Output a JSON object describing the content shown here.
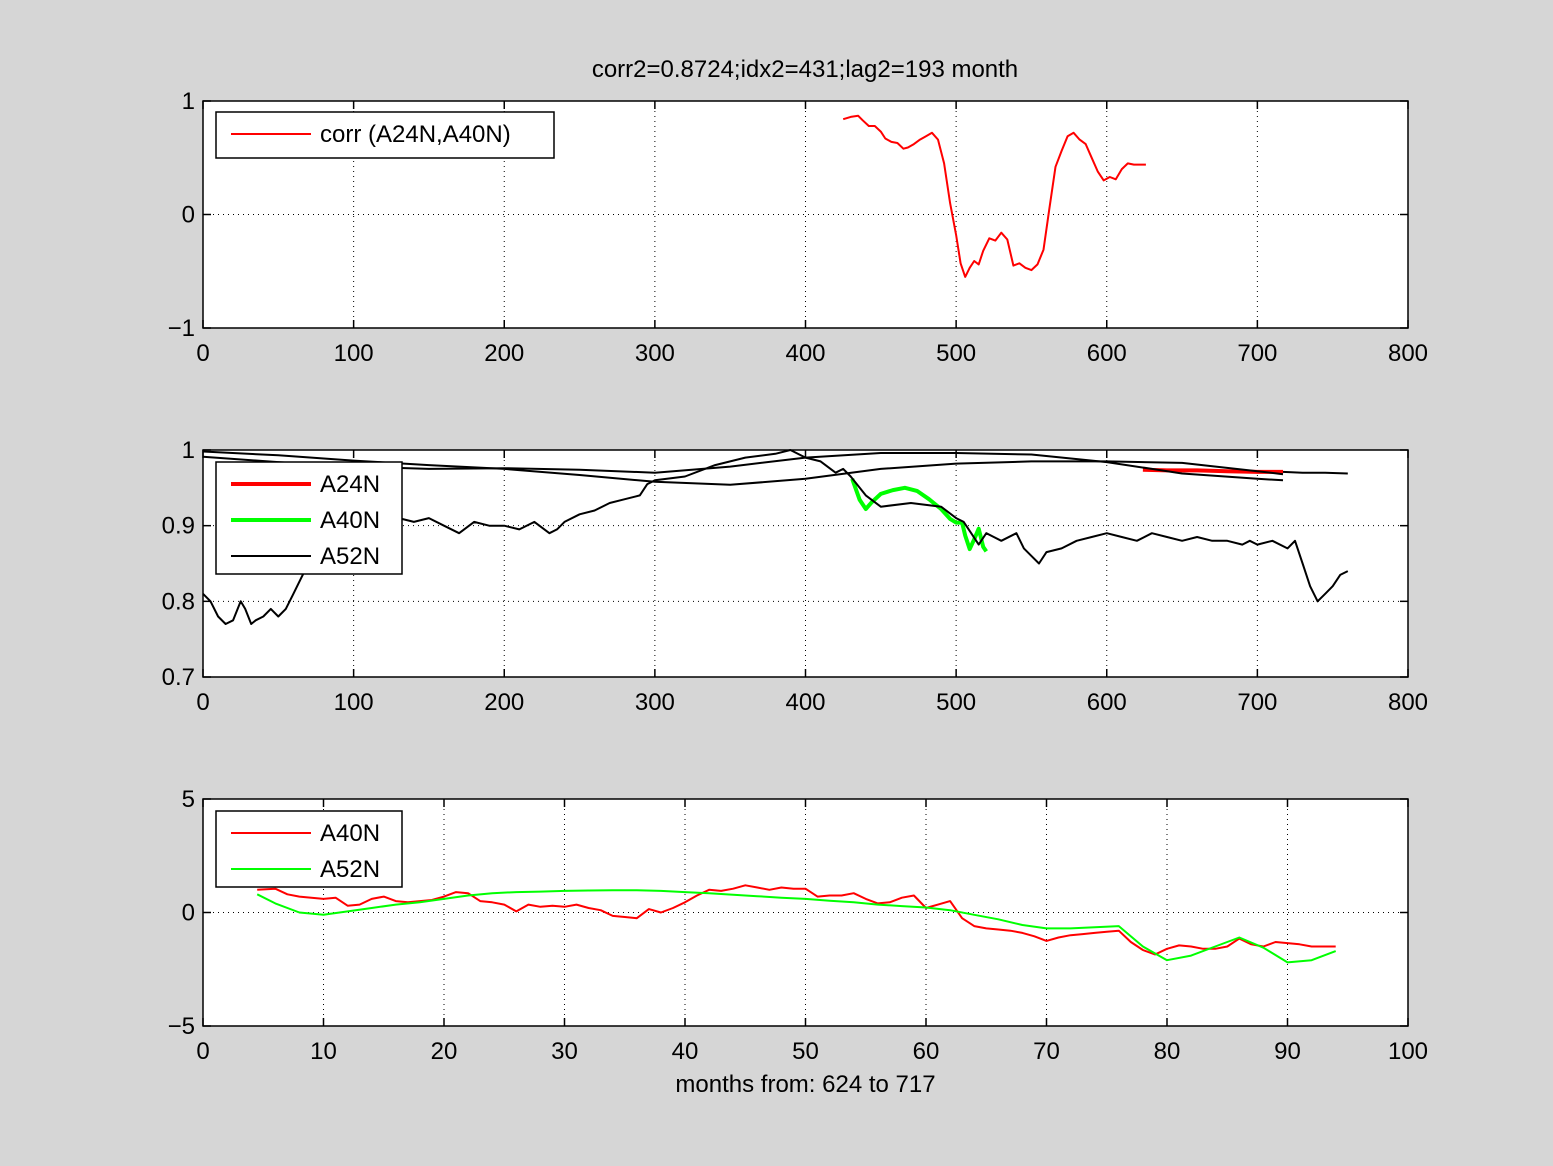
{
  "figure": {
    "background": "#d6d6d6",
    "title": "corr2=0.8724;idx2=431;lag2=193 month",
    "colors": {
      "red": "#ff0000",
      "green": "#00ff00",
      "black": "#000000"
    }
  },
  "chart_data": [
    {
      "type": "line",
      "title": "corr2=0.8724;idx2=431;lag2=193 month",
      "xlabel": "",
      "ylabel": "",
      "xlim": [
        0,
        800
      ],
      "ylim": [
        -1,
        1
      ],
      "xticks": [
        0,
        100,
        200,
        300,
        400,
        500,
        600,
        700,
        800
      ],
      "yticks": [
        -1,
        0,
        1
      ],
      "grid": true,
      "legend_position": "top-left",
      "series": [
        {
          "name": "corr (A24N,A40N)",
          "color": "#ff0000",
          "width": "thin",
          "x": [
            425,
            430,
            435,
            438,
            442,
            446,
            450,
            453,
            457,
            461,
            465,
            468,
            472,
            476,
            480,
            484,
            488,
            492,
            496,
            500,
            503,
            506,
            509,
            512,
            515,
            518,
            522,
            526,
            530,
            534,
            538,
            542,
            546,
            550,
            554,
            558,
            562,
            566,
            570,
            574,
            578,
            582,
            586,
            590,
            594,
            598,
            602,
            606,
            610,
            614,
            618,
            622,
            626
          ],
          "y": [
            0.84,
            0.86,
            0.87,
            0.83,
            0.78,
            0.78,
            0.73,
            0.67,
            0.64,
            0.63,
            0.58,
            0.59,
            0.62,
            0.66,
            0.69,
            0.72,
            0.66,
            0.45,
            0.1,
            -0.18,
            -0.43,
            -0.55,
            -0.47,
            -0.41,
            -0.44,
            -0.32,
            -0.21,
            -0.23,
            -0.16,
            -0.22,
            -0.45,
            -0.43,
            -0.47,
            -0.49,
            -0.44,
            -0.31,
            0.06,
            0.42,
            0.56,
            0.69,
            0.72,
            0.66,
            0.62,
            0.5,
            0.38,
            0.3,
            0.33,
            0.31,
            0.4,
            0.45,
            0.44,
            0.44,
            0.44
          ]
        }
      ]
    },
    {
      "type": "line",
      "title": "",
      "xlabel": "",
      "ylabel": "",
      "xlim": [
        0,
        800
      ],
      "ylim": [
        0.7,
        1
      ],
      "xticks": [
        0,
        100,
        200,
        300,
        400,
        500,
        600,
        700,
        800
      ],
      "yticks": [
        0.7,
        0.8,
        0.9,
        1
      ],
      "ytick_labels": [
        "0.7",
        "0.8",
        "0.9",
        "1"
      ],
      "grid": true,
      "legend_position": "top-left",
      "series": [
        {
          "name": "A24N",
          "color": "#ff0000",
          "width": "thick",
          "x": [
            624,
            640,
            660,
            680,
            700,
            717
          ],
          "y": [
            0.974,
            0.973,
            0.973,
            0.972,
            0.971,
            0.971
          ]
        },
        {
          "name": "A40N",
          "color": "#00ff00",
          "width": "thick",
          "x": [
            431,
            436,
            440,
            444,
            450,
            458,
            466,
            474,
            482,
            490,
            496,
            500,
            504,
            506,
            509,
            512,
            515,
            518,
            520
          ],
          "y": [
            0.962,
            0.934,
            0.922,
            0.931,
            0.942,
            0.947,
            0.95,
            0.946,
            0.935,
            0.922,
            0.909,
            0.904,
            0.904,
            0.887,
            0.869,
            0.882,
            0.896,
            0.872,
            0.866
          ]
        },
        {
          "name": "A52N",
          "color": "#000000",
          "width": "thin",
          "x": [
            0,
            5,
            10,
            15,
            20,
            25,
            28,
            32,
            35,
            40,
            45,
            50,
            55,
            60,
            65,
            70,
            75,
            80,
            85,
            90,
            95,
            100,
            110,
            120,
            130,
            140,
            150,
            160,
            170,
            180,
            190,
            200,
            210,
            220,
            230,
            235,
            240,
            250,
            260,
            270,
            280,
            290,
            295,
            300,
            320,
            340,
            360,
            380,
            390,
            400,
            410,
            420,
            425,
            430,
            440,
            450,
            470,
            490,
            500,
            505,
            510,
            515,
            520,
            525,
            530,
            540,
            545,
            550,
            555,
            560,
            570,
            580,
            590,
            600,
            610,
            620,
            630,
            640,
            650,
            660,
            670,
            680,
            690,
            695,
            700,
            710,
            720,
            725,
            730,
            735,
            740,
            745,
            750,
            755,
            760
          ],
          "y": [
            0.81,
            0.8,
            0.78,
            0.77,
            0.775,
            0.8,
            0.79,
            0.77,
            0.775,
            0.78,
            0.79,
            0.78,
            0.79,
            0.81,
            0.83,
            0.85,
            0.87,
            0.88,
            0.89,
            0.9,
            0.9,
            0.91,
            0.905,
            0.91,
            0.91,
            0.905,
            0.91,
            0.9,
            0.89,
            0.905,
            0.9,
            0.9,
            0.895,
            0.905,
            0.89,
            0.895,
            0.905,
            0.915,
            0.92,
            0.93,
            0.935,
            0.94,
            0.955,
            0.96,
            0.965,
            0.98,
            0.99,
            0.995,
            1.0,
            0.99,
            0.985,
            0.97,
            0.975,
            0.965,
            0.94,
            0.925,
            0.93,
            0.925,
            0.91,
            0.905,
            0.89,
            0.875,
            0.89,
            0.885,
            0.88,
            0.89,
            0.87,
            0.86,
            0.85,
            0.865,
            0.87,
            0.88,
            0.885,
            0.89,
            0.885,
            0.88,
            0.89,
            0.885,
            0.88,
            0.885,
            0.88,
            0.88,
            0.875,
            0.88,
            0.875,
            0.88,
            0.87,
            0.88,
            0.85,
            0.82,
            0.8,
            0.81,
            0.82,
            0.835,
            0.84
          ]
        },
        {
          "name": "",
          "color": "#000000",
          "width": "thin",
          "x": [
            0,
            50,
            100,
            150,
            200,
            250,
            300,
            350,
            400,
            450,
            500,
            550,
            600,
            650,
            700,
            717
          ],
          "y": [
            0.998,
            0.993,
            0.986,
            0.98,
            0.975,
            0.967,
            0.958,
            0.954,
            0.962,
            0.975,
            0.982,
            0.985,
            0.985,
            0.983,
            0.972,
            0.968
          ]
        },
        {
          "name": "",
          "color": "#000000",
          "width": "thin",
          "x": [
            0,
            50,
            100,
            150,
            200,
            250,
            300,
            350,
            400,
            450,
            500,
            550,
            600,
            630,
            650,
            700,
            717
          ],
          "y": [
            0.991,
            0.984,
            0.978,
            0.975,
            0.976,
            0.974,
            0.97,
            0.978,
            0.99,
            0.996,
            0.996,
            0.994,
            0.984,
            0.975,
            0.969,
            0.962,
            0.96
          ]
        },
        {
          "name": "",
          "color": "#000000",
          "width": "thin",
          "x": [
            717,
            730,
            745,
            760
          ],
          "y": [
            0.971,
            0.97,
            0.97,
            0.969
          ]
        }
      ]
    },
    {
      "type": "line",
      "title": "",
      "xlabel": "months from: 624 to 717",
      "ylabel": "",
      "xlim": [
        0,
        100
      ],
      "ylim": [
        -5,
        5
      ],
      "xticks": [
        0,
        10,
        20,
        30,
        40,
        50,
        60,
        70,
        80,
        90,
        100
      ],
      "yticks": [
        -5,
        0,
        5
      ],
      "grid": true,
      "legend_position": "top-left",
      "series": [
        {
          "name": "A40N",
          "color": "#ff0000",
          "width": "thin",
          "x": [
            4.5,
            6,
            7,
            8,
            9,
            10,
            11,
            12,
            13,
            14,
            15,
            16,
            17,
            18,
            19,
            20,
            21,
            22,
            23,
            24,
            25,
            26,
            27,
            28,
            29,
            30,
            31,
            32,
            33,
            34,
            35,
            36,
            37,
            38,
            39,
            40,
            41,
            42,
            43,
            44,
            45,
            46,
            47,
            48,
            49,
            50,
            51,
            52,
            53,
            54,
            55,
            56,
            57,
            58,
            59,
            60,
            61,
            62,
            63,
            64,
            65,
            66,
            67,
            68,
            69,
            70,
            71,
            72,
            73,
            74,
            75,
            76,
            77,
            78,
            79,
            80,
            81,
            82,
            83,
            84,
            85,
            86,
            87,
            88,
            89,
            90,
            91,
            92,
            93,
            94
          ],
          "y": [
            1.0,
            1.05,
            0.8,
            0.7,
            0.65,
            0.6,
            0.65,
            0.3,
            0.35,
            0.6,
            0.7,
            0.5,
            0.45,
            0.5,
            0.55,
            0.7,
            0.9,
            0.85,
            0.5,
            0.45,
            0.35,
            0.05,
            0.35,
            0.25,
            0.3,
            0.25,
            0.35,
            0.2,
            0.1,
            -0.15,
            -0.2,
            -0.25,
            0.15,
            0.0,
            0.2,
            0.45,
            0.75,
            1.0,
            0.95,
            1.05,
            1.2,
            1.1,
            1.0,
            1.1,
            1.05,
            1.05,
            0.7,
            0.75,
            0.75,
            0.85,
            0.6,
            0.4,
            0.45,
            0.65,
            0.75,
            0.2,
            0.35,
            0.5,
            -0.25,
            -0.6,
            -0.7,
            -0.75,
            -0.8,
            -0.9,
            -1.05,
            -1.25,
            -1.1,
            -1.0,
            -0.95,
            -0.9,
            -0.85,
            -0.8,
            -1.3,
            -1.65,
            -1.85,
            -1.6,
            -1.45,
            -1.5,
            -1.6,
            -1.6,
            -1.5,
            -1.15,
            -1.4,
            -1.5,
            -1.3,
            -1.35,
            -1.4,
            -1.5,
            -1.5,
            -1.5
          ]
        },
        {
          "name": "A52N",
          "color": "#00ff00",
          "width": "thin",
          "x": [
            4.5,
            6,
            8,
            10,
            12,
            14,
            16,
            18,
            20,
            22,
            24,
            26,
            28,
            30,
            32,
            34,
            36,
            38,
            40,
            42,
            44,
            46,
            48,
            50,
            52,
            54,
            56,
            58,
            60,
            62,
            64,
            66,
            68,
            70,
            72,
            74,
            76,
            78,
            80,
            82,
            84,
            86,
            88,
            90,
            92,
            94
          ],
          "y": [
            0.8,
            0.4,
            0.0,
            -0.1,
            0.05,
            0.2,
            0.35,
            0.45,
            0.6,
            0.75,
            0.85,
            0.9,
            0.92,
            0.95,
            0.97,
            0.98,
            0.98,
            0.95,
            0.9,
            0.85,
            0.78,
            0.72,
            0.65,
            0.6,
            0.52,
            0.45,
            0.35,
            0.28,
            0.22,
            0.1,
            -0.1,
            -0.3,
            -0.55,
            -0.7,
            -0.7,
            -0.65,
            -0.6,
            -1.5,
            -2.1,
            -1.9,
            -1.5,
            -1.1,
            -1.55,
            -2.2,
            -2.1,
            -1.7
          ]
        }
      ]
    }
  ]
}
